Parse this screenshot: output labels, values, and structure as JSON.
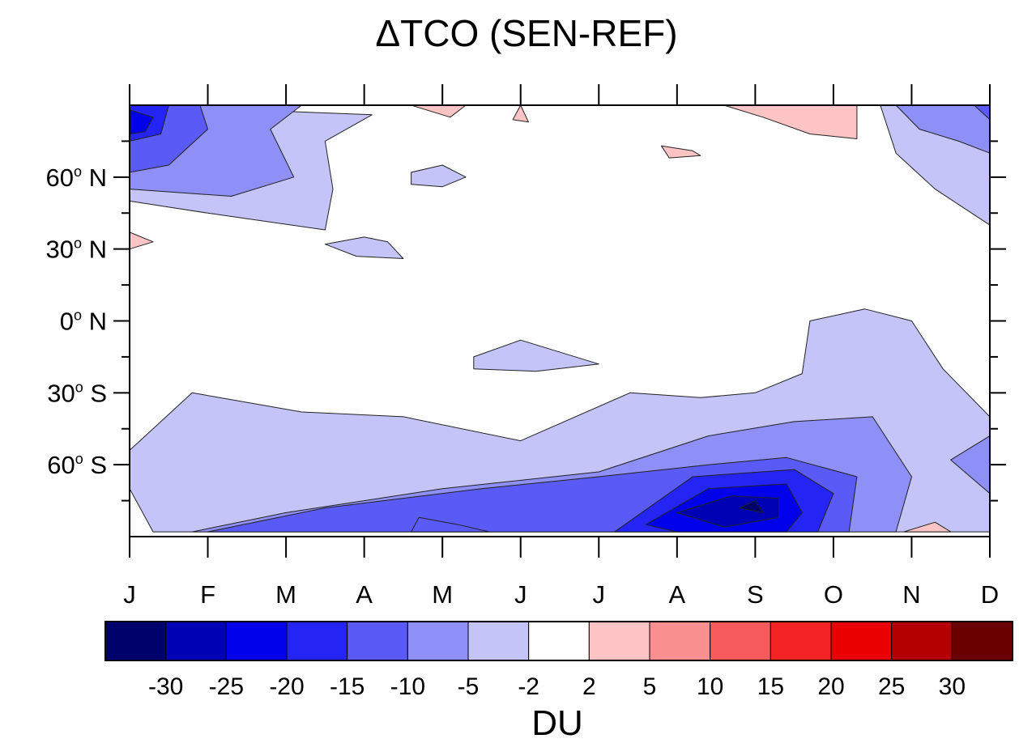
{
  "chart_data": {
    "type": "heatmap",
    "title": "ΔTCO (SEN-REF)",
    "x_tick_labels": [
      "J",
      "F",
      "M",
      "A",
      "M",
      "J",
      "J",
      "A",
      "S",
      "O",
      "N",
      "D"
    ],
    "x_range": [
      1,
      12
    ],
    "y_range": [
      -90,
      90
    ],
    "y_ticks": [
      {
        "value": 60,
        "label": "60",
        "hemisphere": "N"
      },
      {
        "value": 30,
        "label": "30",
        "hemisphere": "N"
      },
      {
        "value": 0,
        "label": "0",
        "hemisphere": "N"
      },
      {
        "value": -30,
        "label": "30",
        "hemisphere": "S"
      },
      {
        "value": -60,
        "label": "60",
        "hemisphere": "S"
      }
    ],
    "degree_symbol": "o",
    "colorbar": {
      "label": "DU",
      "levels": [
        "-30",
        "-25",
        "-20",
        "-15",
        "-10",
        "-5",
        "-2",
        "2",
        "5",
        "10",
        "15",
        "20",
        "25",
        "30"
      ],
      "colors": [
        "#00006b",
        "#0000b4",
        "#0000ea",
        "#2424f4",
        "#5a5af6",
        "#8f8ff8",
        "#c4c4f9",
        "#fefeff",
        "#fcc4c4",
        "#fa8f8f",
        "#f65a5a",
        "#f42424",
        "#ea0000",
        "#b40000",
        "#6b0000"
      ]
    },
    "regions": [
      {
        "level": "-5 to -2",
        "color": "#c4c4f9",
        "points": [
          [
            1,
            -54
          ],
          [
            1.8,
            -30
          ],
          [
            3.2,
            -38
          ],
          [
            4.5,
            -40
          ],
          [
            6,
            -50
          ],
          [
            7.4,
            -30
          ],
          [
            8.3,
            -32
          ],
          [
            9,
            -30
          ],
          [
            9.6,
            -22
          ],
          [
            9.7,
            0
          ],
          [
            10.4,
            5
          ],
          [
            11,
            0
          ],
          [
            11.4,
            -20
          ],
          [
            12,
            -40
          ],
          [
            12,
            -88
          ],
          [
            1.3,
            -88
          ],
          [
            1,
            -70
          ]
        ]
      },
      {
        "level": "-10 to -5",
        "color": "#8f8ff8",
        "points": [
          [
            1.8,
            -88
          ],
          [
            3,
            -80
          ],
          [
            5,
            -70
          ],
          [
            7,
            -63
          ],
          [
            8.4,
            -48
          ],
          [
            9.5,
            -42
          ],
          [
            10.5,
            -40
          ],
          [
            11,
            -65
          ],
          [
            10.8,
            -88
          ]
        ]
      },
      {
        "level": "-15 to -10",
        "color": "#5a5af6",
        "points": [
          [
            2,
            -88
          ],
          [
            3.5,
            -78
          ],
          [
            5.5,
            -70
          ],
          [
            7,
            -65
          ],
          [
            8.4,
            -60
          ],
          [
            9.4,
            -57
          ],
          [
            10.3,
            -65
          ],
          [
            10.2,
            -88
          ]
        ]
      },
      {
        "level": "-20 to -15",
        "color": "#2424f4",
        "points": [
          [
            7.2,
            -88
          ],
          [
            8.2,
            -65
          ],
          [
            9.5,
            -62
          ],
          [
            10,
            -72
          ],
          [
            9.8,
            -88
          ]
        ]
      },
      {
        "level": "-25 to -20",
        "color": "#0000ea",
        "points": [
          [
            7.6,
            -85
          ],
          [
            8.4,
            -70
          ],
          [
            9.4,
            -68
          ],
          [
            9.6,
            -80
          ],
          [
            9.4,
            -88
          ],
          [
            8,
            -88
          ]
        ]
      },
      {
        "level": "-30 to -25",
        "color": "#0000b4",
        "points": [
          [
            8,
            -80
          ],
          [
            8.7,
            -73
          ],
          [
            9.3,
            -74
          ],
          [
            9.3,
            -82
          ],
          [
            8.6,
            -86
          ]
        ]
      },
      {
        "level": "< -30",
        "color": "#00006b",
        "points": [
          [
            8.8,
            -78
          ],
          [
            9,
            -75
          ],
          [
            9.1,
            -80
          ]
        ]
      },
      {
        "level": "-15 to -10",
        "color": "#5a5af6",
        "points": [
          [
            4.6,
            -88
          ],
          [
            4.7,
            -82
          ],
          [
            5.2,
            -85
          ],
          [
            5.6,
            -88
          ]
        ]
      },
      {
        "level": "-5 to -2",
        "color": "#c4c4f9",
        "points": [
          [
            1,
            90
          ],
          [
            4.1,
            86
          ],
          [
            3.5,
            75
          ],
          [
            3.6,
            55
          ],
          [
            3.5,
            38
          ],
          [
            2,
            45
          ],
          [
            1,
            50
          ]
        ]
      },
      {
        "level": "-10 to -5",
        "color": "#8f8ff8",
        "points": [
          [
            1,
            90
          ],
          [
            3.2,
            90
          ],
          [
            2.8,
            80
          ],
          [
            3.1,
            60
          ],
          [
            2.3,
            52
          ],
          [
            1,
            55
          ]
        ]
      },
      {
        "level": "-15 to -10",
        "color": "#5a5af6",
        "points": [
          [
            1,
            90
          ],
          [
            1.9,
            90
          ],
          [
            2,
            80
          ],
          [
            1.5,
            65
          ],
          [
            1,
            62
          ]
        ]
      },
      {
        "level": "-20 to -15",
        "color": "#2424f4",
        "points": [
          [
            1,
            90
          ],
          [
            1.5,
            90
          ],
          [
            1.4,
            78
          ],
          [
            1,
            75
          ]
        ]
      },
      {
        "level": "-25 to -20",
        "color": "#0000ea",
        "points": [
          [
            1,
            88
          ],
          [
            1.3,
            85
          ],
          [
            1.2,
            79
          ],
          [
            1,
            78
          ]
        ]
      },
      {
        "level": "-5 to -2",
        "color": "#c4c4f9",
        "points": [
          [
            4,
            35
          ],
          [
            4.3,
            33
          ],
          [
            4.5,
            26
          ],
          [
            3.9,
            27
          ],
          [
            3.5,
            32
          ]
        ]
      },
      {
        "level": "-5 to -2",
        "color": "#c4c4f9",
        "points": [
          [
            4.6,
            62
          ],
          [
            5,
            65
          ],
          [
            5.3,
            60
          ],
          [
            5,
            56
          ],
          [
            4.6,
            57
          ]
        ]
      },
      {
        "level": "-5 to -2",
        "color": "#c4c4f9",
        "points": [
          [
            5.4,
            -15
          ],
          [
            6,
            -8
          ],
          [
            7,
            -18
          ],
          [
            6.2,
            -21
          ],
          [
            5.4,
            -20
          ]
        ]
      },
      {
        "level": "-5 to -2",
        "color": "#c4c4f9",
        "points": [
          [
            10.6,
            90
          ],
          [
            11.6,
            90
          ],
          [
            12,
            70
          ],
          [
            12,
            40
          ],
          [
            11.3,
            55
          ],
          [
            10.8,
            70
          ]
        ]
      },
      {
        "level": "-10 to -5",
        "color": "#8f8ff8",
        "points": [
          [
            10.8,
            90
          ],
          [
            12,
            90
          ],
          [
            12,
            70
          ],
          [
            11.6,
            75
          ],
          [
            11.1,
            80
          ]
        ]
      },
      {
        "level": "-15 to -10",
        "color": "#5a5af6",
        "points": [
          [
            11.8,
            90
          ],
          [
            12,
            90
          ],
          [
            12,
            84
          ]
        ]
      },
      {
        "level": "-10 to -5",
        "color": "#8f8ff8",
        "points": [
          [
            12,
            -48
          ],
          [
            11.5,
            -58
          ],
          [
            12,
            -72
          ]
        ]
      },
      {
        "level": "2 to 5",
        "color": "#fcc4c4",
        "points": [
          [
            1,
            37
          ],
          [
            1.3,
            33
          ],
          [
            1,
            30
          ]
        ]
      },
      {
        "level": "2 to 5",
        "color": "#fcc4c4",
        "points": [
          [
            4.6,
            90
          ],
          [
            5.1,
            85
          ],
          [
            5.3,
            90
          ]
        ]
      },
      {
        "level": "2 to 5",
        "color": "#fcc4c4",
        "points": [
          [
            6,
            90
          ],
          [
            6.1,
            83
          ],
          [
            5.9,
            84
          ]
        ]
      },
      {
        "level": "2 to 5",
        "color": "#fcc4c4",
        "points": [
          [
            7.8,
            73
          ],
          [
            8.2,
            71
          ],
          [
            8.3,
            69
          ],
          [
            7.9,
            68
          ]
        ]
      },
      {
        "level": "2 to 5",
        "color": "#fcc4c4",
        "points": [
          [
            8.6,
            90
          ],
          [
            10.3,
            90
          ],
          [
            10.3,
            76
          ],
          [
            9.7,
            78
          ],
          [
            9.1,
            85
          ]
        ]
      },
      {
        "level": "2 to 5",
        "color": "#fcc4c4",
        "points": [
          [
            10.9,
            -88
          ],
          [
            11.3,
            -84
          ],
          [
            11.5,
            -88
          ]
        ]
      }
    ]
  }
}
